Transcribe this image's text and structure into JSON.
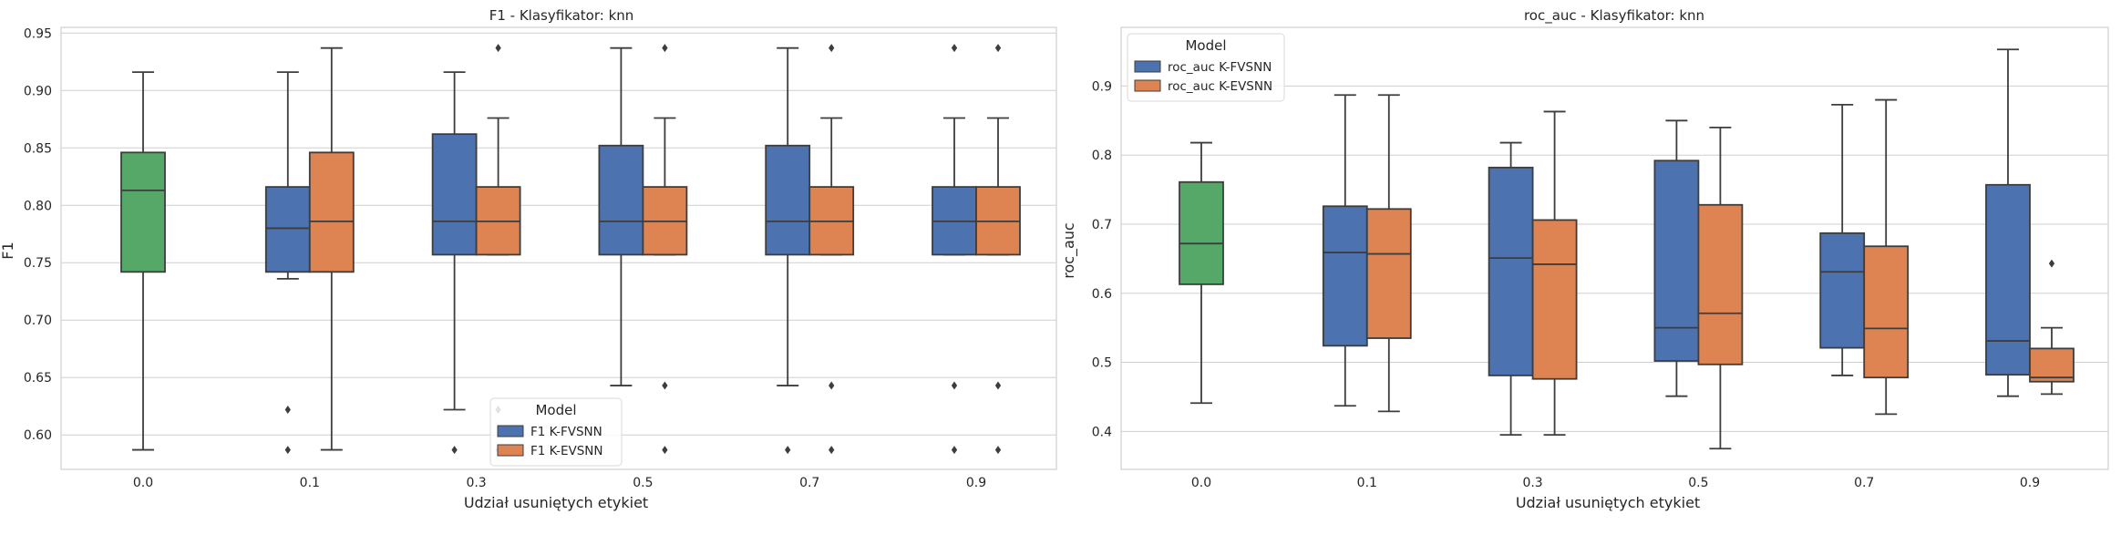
{
  "chart_data": [
    {
      "type": "box",
      "title": "F1 - Klasyfikator: knn",
      "xlabel": "Udział usuniętych etykiet",
      "ylabel": "F1",
      "categories": [
        "0.0",
        "0.1",
        "0.3",
        "0.5",
        "0.7",
        "0.9"
      ],
      "ylim": [
        0.57,
        0.955
      ],
      "yticks": [
        "0.60",
        "0.65",
        "0.70",
        "0.75",
        "0.80",
        "0.85",
        "0.90",
        "0.95"
      ],
      "grid": true,
      "legend": {
        "title": "Model",
        "position": "lower-center",
        "entries": [
          {
            "label": "F1 K-FVSNN",
            "color": "#4c72b0"
          },
          {
            "label": "F1 K-EVSNN",
            "color": "#dd8452"
          }
        ]
      },
      "baseline": {
        "category": "0.0",
        "color": "#55a868",
        "box": {
          "whisker_low": 0.587,
          "q1": 0.742,
          "median": 0.813,
          "q3": 0.846,
          "whisker_high": 0.916,
          "outliers": []
        }
      },
      "series": [
        {
          "name": "F1 K-FVSNN",
          "color": "#4c72b0",
          "boxes": [
            {
              "category": "0.1",
              "whisker_low": 0.736,
              "q1": 0.742,
              "median": 0.78,
              "q3": 0.816,
              "whisker_high": 0.916,
              "outliers": [
                0.622,
                0.587
              ]
            },
            {
              "category": "0.3",
              "whisker_low": 0.622,
              "q1": 0.757,
              "median": 0.786,
              "q3": 0.862,
              "whisker_high": 0.916,
              "outliers": [
                0.587
              ]
            },
            {
              "category": "0.5",
              "whisker_low": 0.643,
              "q1": 0.757,
              "median": 0.786,
              "q3": 0.852,
              "whisker_high": 0.937,
              "outliers": []
            },
            {
              "category": "0.7",
              "whisker_low": 0.643,
              "q1": 0.757,
              "median": 0.786,
              "q3": 0.852,
              "whisker_high": 0.937,
              "outliers": [
                0.587
              ]
            },
            {
              "category": "0.9",
              "whisker_low": 0.757,
              "q1": 0.757,
              "median": 0.786,
              "q3": 0.816,
              "whisker_high": 0.876,
              "outliers": [
                0.937,
                0.643,
                0.587
              ]
            }
          ]
        },
        {
          "name": "F1 K-EVSNN",
          "color": "#dd8452",
          "boxes": [
            {
              "category": "0.1",
              "whisker_low": 0.587,
              "q1": 0.742,
              "median": 0.786,
              "q3": 0.846,
              "whisker_high": 0.937,
              "outliers": []
            },
            {
              "category": "0.3",
              "whisker_low": 0.757,
              "q1": 0.757,
              "median": 0.786,
              "q3": 0.816,
              "whisker_high": 0.876,
              "outliers": [
                0.937,
                0.622,
                0.587
              ]
            },
            {
              "category": "0.5",
              "whisker_low": 0.757,
              "q1": 0.757,
              "median": 0.786,
              "q3": 0.816,
              "whisker_high": 0.876,
              "outliers": [
                0.937,
                0.643,
                0.587
              ]
            },
            {
              "category": "0.7",
              "whisker_low": 0.757,
              "q1": 0.757,
              "median": 0.786,
              "q3": 0.816,
              "whisker_high": 0.876,
              "outliers": [
                0.937,
                0.643,
                0.587
              ]
            },
            {
              "category": "0.9",
              "whisker_low": 0.757,
              "q1": 0.757,
              "median": 0.786,
              "q3": 0.816,
              "whisker_high": 0.876,
              "outliers": [
                0.937,
                0.643,
                0.587
              ]
            }
          ]
        }
      ]
    },
    {
      "type": "box",
      "title": "roc_auc - Klasyfikator: knn",
      "xlabel": "Udział usuniętych etykiet",
      "ylabel": "roc_auc",
      "categories": [
        "0.0",
        "0.1",
        "0.3",
        "0.5",
        "0.7",
        "0.9"
      ],
      "ylim": [
        0.345,
        0.985
      ],
      "yticks": [
        "0.4",
        "0.5",
        "0.6",
        "0.7",
        "0.8",
        "0.9"
      ],
      "grid": true,
      "legend": {
        "title": "Model",
        "position": "upper-left",
        "entries": [
          {
            "label": "roc_auc K-FVSNN",
            "color": "#4c72b0"
          },
          {
            "label": "roc_auc K-EVSNN",
            "color": "#dd8452"
          }
        ]
      },
      "baseline": {
        "category": "0.0",
        "color": "#55a868",
        "box": {
          "whisker_low": 0.441,
          "q1": 0.613,
          "median": 0.672,
          "q3": 0.761,
          "whisker_high": 0.818,
          "outliers": []
        }
      },
      "series": [
        {
          "name": "roc_auc K-FVSNN",
          "color": "#4c72b0",
          "boxes": [
            {
              "category": "0.1",
              "whisker_low": 0.437,
              "q1": 0.524,
              "median": 0.659,
              "q3": 0.726,
              "whisker_high": 0.887,
              "outliers": []
            },
            {
              "category": "0.3",
              "whisker_low": 0.395,
              "q1": 0.481,
              "median": 0.651,
              "q3": 0.782,
              "whisker_high": 0.818,
              "outliers": []
            },
            {
              "category": "0.5",
              "whisker_low": 0.451,
              "q1": 0.502,
              "median": 0.55,
              "q3": 0.792,
              "whisker_high": 0.85,
              "outliers": []
            },
            {
              "category": "0.7",
              "whisker_low": 0.481,
              "q1": 0.521,
              "median": 0.631,
              "q3": 0.687,
              "whisker_high": 0.873,
              "outliers": []
            },
            {
              "category": "0.9",
              "whisker_low": 0.451,
              "q1": 0.482,
              "median": 0.531,
              "q3": 0.757,
              "whisker_high": 0.953,
              "outliers": []
            }
          ]
        },
        {
          "name": "roc_auc K-EVSNN",
          "color": "#dd8452",
          "boxes": [
            {
              "category": "0.1",
              "whisker_low": 0.429,
              "q1": 0.535,
              "median": 0.657,
              "q3": 0.722,
              "whisker_high": 0.887,
              "outliers": []
            },
            {
              "category": "0.3",
              "whisker_low": 0.395,
              "q1": 0.476,
              "median": 0.642,
              "q3": 0.706,
              "whisker_high": 0.863,
              "outliers": []
            },
            {
              "category": "0.5",
              "whisker_low": 0.375,
              "q1": 0.497,
              "median": 0.571,
              "q3": 0.728,
              "whisker_high": 0.84,
              "outliers": []
            },
            {
              "category": "0.7",
              "whisker_low": 0.425,
              "q1": 0.478,
              "median": 0.549,
              "q3": 0.668,
              "whisker_high": 0.88,
              "outliers": []
            },
            {
              "category": "0.9",
              "whisker_low": 0.454,
              "q1": 0.472,
              "median": 0.478,
              "q3": 0.52,
              "whisker_high": 0.55,
              "outliers": [
                0.643
              ]
            }
          ]
        }
      ]
    }
  ]
}
